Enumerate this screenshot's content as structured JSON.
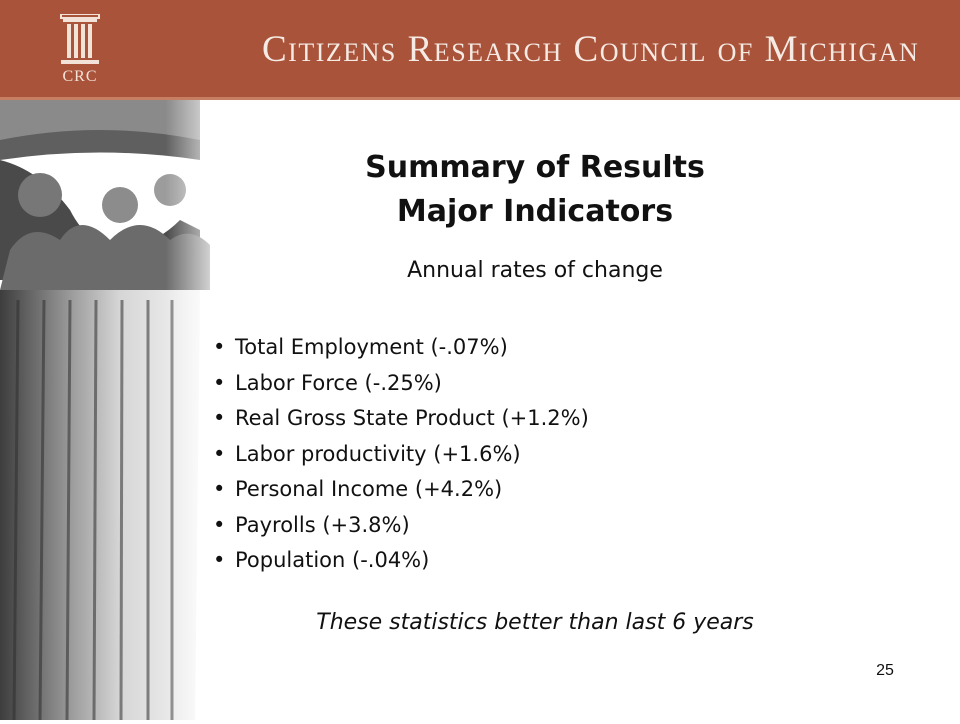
{
  "header": {
    "logo_text": "CRC",
    "organization": "Citizens Research Council of Michigan"
  },
  "slide": {
    "title_line1": "Summary of Results",
    "title_line2": "Major Indicators",
    "subtitle": "Annual rates of change",
    "bullets": [
      "Total Employment (-.07%)",
      "Labor Force (-.25%)",
      "Real Gross State Product (+1.2%)",
      "Labor productivity (+1.6%)",
      "Personal Income (+4.2%)",
      "Payrolls (+3.8%)",
      "Population (-.04%)"
    ],
    "note": "These statistics better than last 6 years",
    "page_number": "25"
  },
  "colors": {
    "header_bg": "#a8533a",
    "header_text": "#f6ebe4"
  }
}
